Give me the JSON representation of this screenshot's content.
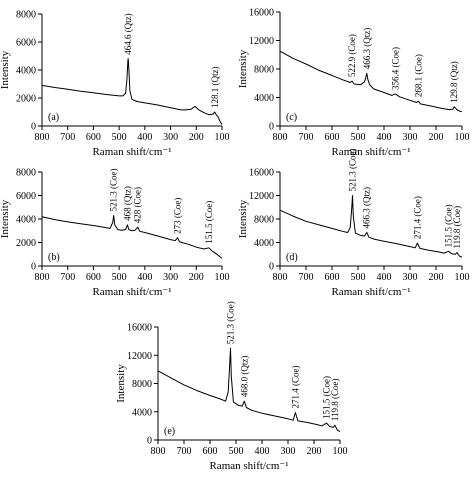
{
  "chart_data": [
    {
      "type": "line",
      "panel_label": "(a)",
      "xlabel": "Raman shift/cm⁻¹",
      "ylabel": "Intensity",
      "xlim": [
        800,
        100
      ],
      "ylim": [
        0,
        8000
      ],
      "x_ticks": [
        800,
        700,
        600,
        500,
        400,
        300,
        200,
        100
      ],
      "y_ticks": [
        0,
        2000,
        4000,
        6000,
        8000
      ],
      "x": [
        800,
        750,
        700,
        650,
        600,
        550,
        500,
        485,
        475,
        470,
        466,
        464.6,
        462,
        458,
        450,
        430,
        400,
        350,
        300,
        260,
        240,
        220,
        205,
        190,
        170,
        150,
        135,
        128.1,
        122,
        115,
        108,
        100
      ],
      "y": [
        2900,
        2750,
        2620,
        2480,
        2380,
        2250,
        2150,
        2150,
        2350,
        3300,
        4700,
        4800,
        4000,
        2500,
        1900,
        1750,
        1650,
        1500,
        1300,
        1150,
        1150,
        1200,
        1400,
        1150,
        950,
        800,
        850,
        1000,
        800,
        650,
        350,
        100
      ],
      "annotations": [
        {
          "label": "464.6 (Qtz)",
          "x": 464.6,
          "y": 4800
        },
        {
          "label": "128.1 (Qtz)",
          "x": 128.1,
          "y": 1000
        }
      ]
    },
    {
      "type": "line",
      "panel_label": "(c)",
      "xlabel": "Raman shift/cm⁻¹",
      "ylabel": "Intensity",
      "xlim": [
        800,
        100
      ],
      "ylim": [
        0,
        16000
      ],
      "x_ticks": [
        800,
        700,
        600,
        500,
        400,
        300,
        200,
        100
      ],
      "y_ticks": [
        0,
        4000,
        8000,
        12000,
        16000
      ],
      "x": [
        800,
        750,
        700,
        650,
        600,
        560,
        530,
        522.9,
        515,
        490,
        475,
        470,
        466.3,
        462,
        455,
        440,
        400,
        370,
        356.4,
        340,
        300,
        275,
        268.1,
        260,
        220,
        180,
        150,
        135,
        129.8,
        120,
        110,
        100
      ],
      "y": [
        10500,
        9500,
        8700,
        7800,
        7100,
        6500,
        6100,
        6300,
        5900,
        5800,
        6200,
        6800,
        7400,
        6500,
        5800,
        5200,
        4700,
        4300,
        4500,
        4100,
        3600,
        3300,
        3500,
        3100,
        2800,
        2500,
        2300,
        2350,
        2700,
        2300,
        2100,
        2000
      ],
      "annotations": [
        {
          "label": "522.9 (Coe)",
          "x": 522.9,
          "y": 6300
        },
        {
          "label": "466.3 (Qtz)",
          "x": 466.3,
          "y": 7400
        },
        {
          "label": "356.4 (Coe)",
          "x": 356.4,
          "y": 4500
        },
        {
          "label": "268.1 (Coe)",
          "x": 268.1,
          "y": 3500
        },
        {
          "label": "129.8 (Qtz)",
          "x": 129.8,
          "y": 2700
        }
      ]
    },
    {
      "type": "line",
      "panel_label": "(b)",
      "xlabel": "Raman shift/cm⁻¹",
      "ylabel": "Intensity",
      "xlim": [
        800,
        100
      ],
      "ylim": [
        0,
        8000
      ],
      "x_ticks": [
        800,
        700,
        600,
        500,
        400,
        300,
        200,
        100
      ],
      "y_ticks": [
        0,
        2000,
        4000,
        6000,
        8000
      ],
      "x": [
        800,
        750,
        700,
        650,
        600,
        560,
        535,
        525,
        521.3,
        517,
        505,
        490,
        475,
        468,
        462,
        450,
        438,
        428,
        420,
        400,
        350,
        300,
        282,
        273,
        265,
        230,
        200,
        170,
        151.5,
        140,
        120,
        100
      ],
      "y": [
        4200,
        3950,
        3750,
        3600,
        3450,
        3300,
        3200,
        3700,
        4300,
        3500,
        3100,
        3050,
        3100,
        3500,
        3100,
        3000,
        3050,
        3300,
        2950,
        2850,
        2550,
        2250,
        2150,
        2400,
        2050,
        1850,
        1600,
        1450,
        1550,
        1300,
        1000,
        650
      ],
      "annotations": [
        {
          "label": "521.3 (Coe)",
          "x": 521.3,
          "y": 4300
        },
        {
          "label": "468 (Qtz)",
          "x": 468,
          "y": 3500
        },
        {
          "label": "428 (Coe)",
          "x": 428,
          "y": 3300
        },
        {
          "label": "273 (Coe)",
          "x": 273,
          "y": 2400
        },
        {
          "label": "151.5 (Coe)",
          "x": 151.5,
          "y": 1550
        }
      ]
    },
    {
      "type": "line",
      "panel_label": "(d)",
      "xlabel": "Raman shift/cm⁻¹",
      "ylabel": "Intensity",
      "xlim": [
        800,
        100
      ],
      "ylim": [
        0,
        16000
      ],
      "x_ticks": [
        800,
        700,
        600,
        500,
        400,
        300,
        200,
        100
      ],
      "y_ticks": [
        0,
        4000,
        8000,
        12000,
        16000
      ],
      "x": [
        800,
        750,
        700,
        650,
        600,
        560,
        540,
        530,
        524,
        521.3,
        518,
        510,
        490,
        475,
        466.3,
        458,
        440,
        400,
        350,
        300,
        280,
        271.4,
        262,
        230,
        190,
        170,
        151.5,
        140,
        125,
        119.8,
        110,
        100
      ],
      "y": [
        9500,
        8500,
        7600,
        7000,
        6400,
        5900,
        5700,
        6500,
        10000,
        12000,
        8500,
        5600,
        5200,
        5100,
        5700,
        4900,
        4600,
        4200,
        3800,
        3300,
        3100,
        3900,
        3000,
        2700,
        2400,
        2200,
        2500,
        2100,
        2000,
        2300,
        1700,
        1500
      ],
      "annotations": [
        {
          "label": "521.3 (Coe)",
          "x": 521.3,
          "y": 12000
        },
        {
          "label": "466.3 (Qtz)",
          "x": 466.3,
          "y": 5700
        },
        {
          "label": "271.4 (Coe)",
          "x": 271.4,
          "y": 3900
        },
        {
          "label": "151.5 (Coe)",
          "x": 151.5,
          "y": 2500
        },
        {
          "label": "119.8 (Coe)",
          "x": 119.8,
          "y": 2300
        }
      ]
    },
    {
      "type": "line",
      "panel_label": "(e)",
      "xlabel": "Raman shift/cm⁻¹",
      "ylabel": "Intensity",
      "xlim": [
        800,
        100
      ],
      "ylim": [
        0,
        16000
      ],
      "x_ticks": [
        800,
        700,
        600,
        500,
        400,
        300,
        200,
        100
      ],
      "y_ticks": [
        0,
        4000,
        8000,
        12000,
        16000
      ],
      "x": [
        800,
        750,
        700,
        650,
        600,
        560,
        540,
        530,
        524,
        521.3,
        518,
        510,
        490,
        476,
        468,
        460,
        440,
        400,
        350,
        300,
        280,
        271.4,
        262,
        230,
        190,
        170,
        151.5,
        140,
        125,
        119.8,
        110,
        100
      ],
      "y": [
        9800,
        8800,
        7800,
        7000,
        6300,
        5800,
        5500,
        6800,
        11000,
        13000,
        9000,
        5400,
        4900,
        4800,
        5500,
        4600,
        4200,
        3800,
        3400,
        3000,
        2800,
        3900,
        2700,
        2500,
        2200,
        2000,
        2400,
        1900,
        1800,
        2100,
        1400,
        1200
      ],
      "annotations": [
        {
          "label": "521.3 (Coe)",
          "x": 521.3,
          "y": 13000
        },
        {
          "label": "468.0 (Qtz)",
          "x": 468.0,
          "y": 5500
        },
        {
          "label": "271.4 (Coe)",
          "x": 271.4,
          "y": 3900
        },
        {
          "label": "151.5 (Coe)",
          "x": 151.5,
          "y": 2400
        },
        {
          "label": "119.8 (Coe)",
          "x": 119.8,
          "y": 2100
        }
      ]
    }
  ]
}
